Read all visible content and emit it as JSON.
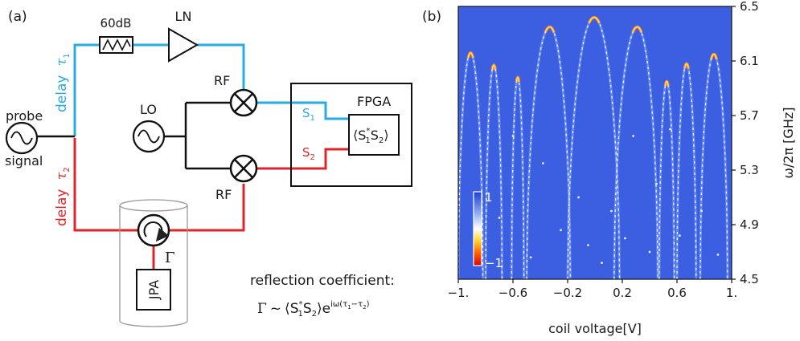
{
  "panel_a": {
    "label": "(a)",
    "attenuator": "60dB",
    "amplifier": "LN",
    "mixer_top": "RF",
    "mixer_bottom": "RF",
    "local_oscillator": "LO",
    "fpga": "FPGA",
    "s1": "S",
    "s1_sub": "1",
    "s2": "S",
    "s2_sub": "2",
    "corr_box": {
      "open": "⟨",
      "s1": "S",
      "s1_sub": "1",
      "star": "*",
      "s2": "S",
      "s2_sub": "2",
      "close": "⟩"
    },
    "probe": "probe",
    "signal": "signal",
    "delay1": "delay",
    "tau1": "τ",
    "tau1_sub": "1",
    "delay2": "delay",
    "tau2": "τ",
    "tau2_sub": "2",
    "gamma": "Γ",
    "jpa": "JPA",
    "refl_title": "reflection coefficient:",
    "refl_formula": {
      "gamma": "Γ",
      "sim": "~",
      "open": "⟨",
      "s1": "S",
      "s1_sub": "1",
      "star": "*",
      "s2": "S",
      "s2_sub": "2",
      "close": "⟩",
      "e": "e",
      "exp": "iω(τ",
      "exp_sub1": "1",
      "exp_mid": "−τ",
      "exp_sub2": "2",
      "exp_end": ")"
    }
  },
  "panel_b": {
    "label": "(b)",
    "xlabel": "coil voltage[V]",
    "ylabel": "ω/2π [GHz]",
    "colorbar_max": "1",
    "colorbar_min": "−1"
  },
  "colors": {
    "blue_line": "#29abe2",
    "red_line": "#e0242a",
    "plot_bg": "#3b5fe0"
  },
  "chart_data": {
    "type": "heatmap",
    "xlim": [
      -1.0,
      1.0
    ],
    "ylim": [
      4.5,
      6.5
    ],
    "x_ticks": [
      -1.0,
      -0.6,
      -0.2,
      0.2,
      0.6,
      1.0
    ],
    "x_tick_labels": [
      "−1.",
      "−0.6",
      "−0.2",
      "0.2",
      "0.6",
      "1."
    ],
    "y_ticks": [
      4.5,
      4.9,
      5.3,
      5.7,
      6.1,
      6.5
    ],
    "y_tick_labels": [
      "4.5",
      "4.9",
      "5.3",
      "5.7",
      "6.1",
      "6.5"
    ],
    "colorbar_range": [
      -1,
      1
    ],
    "arcs": [
      {
        "x_left": -1.0,
        "x_right": -0.82,
        "peak_x": -0.91,
        "peak_y": 6.16
      },
      {
        "x_left": -0.8,
        "x_right": -0.68,
        "peak_x": -0.74,
        "peak_y": 6.07
      },
      {
        "x_left": -0.61,
        "x_right": -0.52,
        "peak_x": -0.565,
        "peak_y": 5.98
      },
      {
        "x_left": -0.5,
        "x_right": -0.18,
        "peak_x": -0.33,
        "peak_y": 6.35
      },
      {
        "x_left": -0.2,
        "x_right": 0.18,
        "peak_x": -0.005,
        "peak_y": 6.42
      },
      {
        "x_left": 0.14,
        "x_right": 0.46,
        "peak_x": 0.31,
        "peak_y": 6.35
      },
      {
        "x_left": 0.47,
        "x_right": 0.58,
        "peak_x": 0.525,
        "peak_y": 5.95
      },
      {
        "x_left": 0.6,
        "x_right": 0.74,
        "peak_x": 0.67,
        "peak_y": 6.08
      },
      {
        "x_left": 0.77,
        "x_right": 0.97,
        "peak_x": 0.87,
        "peak_y": 6.15
      }
    ]
  }
}
